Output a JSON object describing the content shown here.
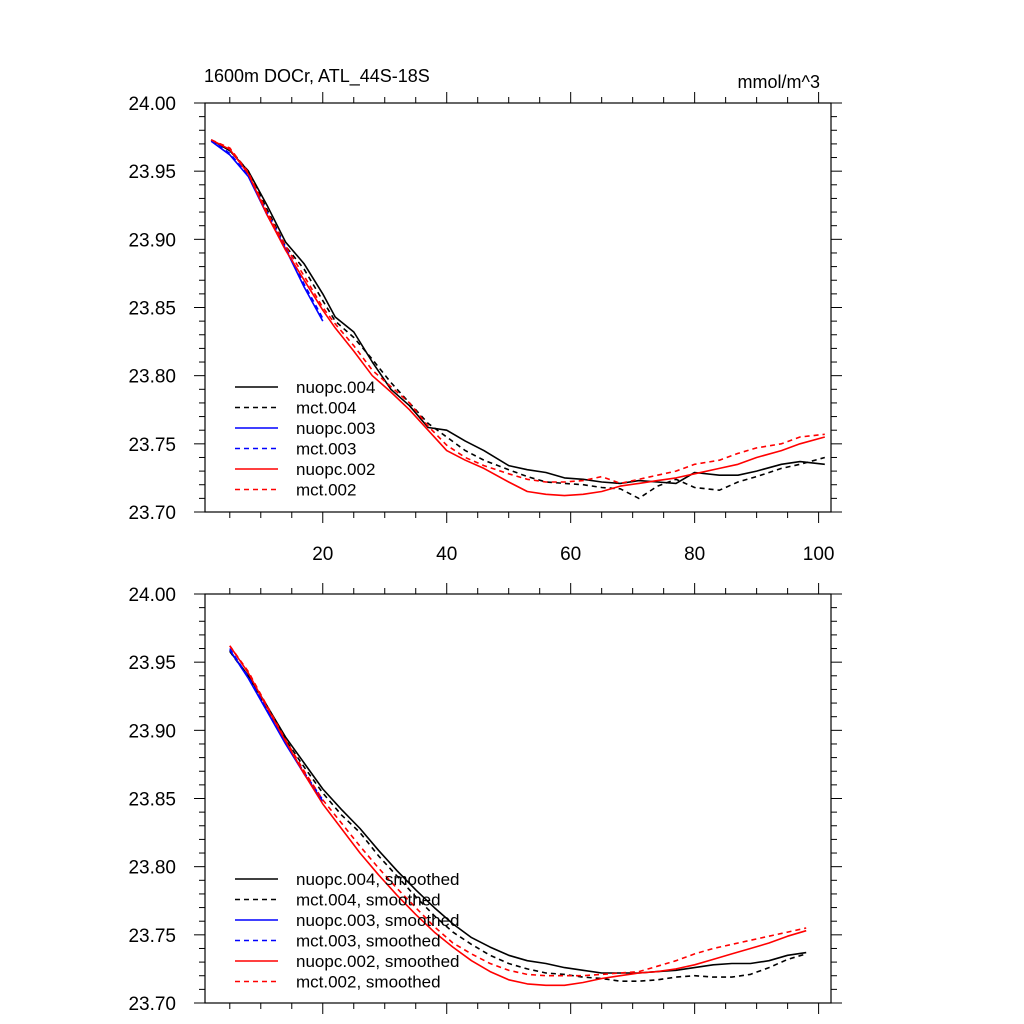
{
  "page": {
    "title_left": "1600m DOCr, ATL_44S-18S",
    "title_right": "mmol/m^3"
  },
  "colors": {
    "004": "#000000",
    "003": "#0000ff",
    "002": "#ff0000"
  },
  "chart_data": [
    {
      "type": "line",
      "title": "1600m DOCr, ATL_44S-18S",
      "units_label": "mmol/m^3",
      "xlabel": "",
      "ylabel": "",
      "xlim": [
        1,
        102
      ],
      "ylim": [
        23.7,
        24.0
      ],
      "x_ticks": [
        20,
        40,
        60,
        80,
        100
      ],
      "x_tick_labels": [
        "20",
        "40",
        "60",
        "80",
        "100"
      ],
      "y_ticks": [
        23.7,
        23.75,
        23.8,
        23.85,
        23.9,
        23.95,
        24.0
      ],
      "y_tick_labels": [
        "23.70",
        "23.75",
        "23.80",
        "23.85",
        "23.90",
        "23.95",
        "24.00"
      ],
      "legend": {
        "position": "lower-left"
      },
      "series": [
        {
          "name": "nuopc.004",
          "color": "#000000",
          "dash": "solid",
          "x": [
            2,
            5,
            8,
            11,
            14,
            17,
            20,
            22,
            25,
            28,
            31,
            34,
            37,
            40,
            43,
            46,
            50,
            53,
            56,
            59,
            62,
            65,
            68,
            71,
            74,
            77,
            80,
            84,
            87,
            90,
            94,
            97,
            101
          ],
          "y": [
            23.973,
            23.965,
            23.95,
            23.925,
            23.898,
            23.882,
            23.86,
            23.843,
            23.832,
            23.81,
            23.79,
            23.778,
            23.762,
            23.76,
            23.752,
            23.745,
            23.734,
            23.731,
            23.729,
            23.725,
            23.724,
            23.722,
            23.721,
            23.723,
            23.722,
            23.721,
            23.729,
            23.727,
            23.727,
            23.73,
            23.735,
            23.737,
            23.735
          ]
        },
        {
          "name": "mct.004",
          "color": "#000000",
          "dash": "dashed",
          "x": [
            2,
            5,
            8,
            11,
            14,
            17,
            20,
            22,
            25,
            28,
            31,
            34,
            37,
            40,
            43,
            46,
            50,
            53,
            56,
            59,
            62,
            65,
            68,
            71,
            74,
            77,
            80,
            84,
            87,
            90,
            94,
            97,
            101
          ],
          "y": [
            23.972,
            23.966,
            23.95,
            23.922,
            23.895,
            23.878,
            23.855,
            23.84,
            23.828,
            23.812,
            23.795,
            23.78,
            23.765,
            23.755,
            23.745,
            23.738,
            23.731,
            23.726,
            23.722,
            23.721,
            23.72,
            23.718,
            23.717,
            23.71,
            23.719,
            23.724,
            23.718,
            23.716,
            23.722,
            23.726,
            23.732,
            23.735,
            23.74
          ]
        },
        {
          "name": "nuopc.003",
          "color": "#0000ff",
          "dash": "solid",
          "x": [
            2,
            5,
            8,
            11,
            14,
            17,
            20
          ],
          "y": [
            23.972,
            23.962,
            23.946,
            23.918,
            23.893,
            23.865,
            23.84
          ]
        },
        {
          "name": "mct.003",
          "color": "#0000ff",
          "dash": "dashed",
          "x": [
            2,
            5,
            8,
            11,
            14,
            17,
            20
          ],
          "y": [
            23.973,
            23.963,
            23.947,
            23.92,
            23.894,
            23.867,
            23.842
          ]
        },
        {
          "name": "nuopc.002",
          "color": "#ff0000",
          "dash": "solid",
          "x": [
            2,
            5,
            8,
            11,
            14,
            17,
            20,
            22,
            25,
            28,
            31,
            34,
            37,
            40,
            43,
            46,
            50,
            53,
            56,
            59,
            62,
            65,
            68,
            71,
            74,
            77,
            80,
            84,
            87,
            90,
            94,
            97,
            101
          ],
          "y": [
            23.973,
            23.966,
            23.948,
            23.918,
            23.892,
            23.87,
            23.848,
            23.835,
            23.818,
            23.8,
            23.788,
            23.775,
            23.76,
            23.745,
            23.738,
            23.732,
            23.722,
            23.715,
            23.713,
            23.712,
            23.713,
            23.715,
            23.719,
            23.721,
            23.723,
            23.725,
            23.728,
            23.732,
            23.735,
            23.74,
            23.745,
            23.75,
            23.755
          ]
        },
        {
          "name": "mct.002",
          "color": "#ff0000",
          "dash": "dashed",
          "x": [
            2,
            5,
            8,
            11,
            14,
            17,
            20,
            22,
            25,
            28,
            31,
            34,
            37,
            40,
            43,
            46,
            50,
            53,
            56,
            59,
            62,
            65,
            68,
            71,
            74,
            77,
            80,
            84,
            87,
            90,
            94,
            97,
            101
          ],
          "y": [
            23.973,
            23.967,
            23.949,
            23.92,
            23.895,
            23.873,
            23.85,
            23.838,
            23.822,
            23.804,
            23.792,
            23.78,
            23.763,
            23.749,
            23.74,
            23.734,
            23.728,
            23.724,
            23.722,
            23.722,
            23.723,
            23.726,
            23.721,
            23.724,
            23.727,
            23.73,
            23.735,
            23.738,
            23.743,
            23.747,
            23.75,
            23.755,
            23.757
          ]
        }
      ]
    },
    {
      "type": "line",
      "title": "",
      "xlabel": "",
      "ylabel": "",
      "xlim": [
        1,
        102
      ],
      "ylim": [
        23.7,
        24.0
      ],
      "x_ticks": [
        20,
        40,
        60,
        80,
        100
      ],
      "y_ticks": [
        23.7,
        23.75,
        23.8,
        23.85,
        23.9,
        23.95,
        24.0
      ],
      "y_tick_labels": [
        "23.70",
        "23.75",
        "23.80",
        "23.85",
        "23.90",
        "23.95",
        "24.00"
      ],
      "legend": {
        "position": "lower-left"
      },
      "series": [
        {
          "name": "nuopc.004, smoothed",
          "color": "#000000",
          "dash": "solid",
          "x": [
            5,
            8,
            11,
            14,
            17,
            20,
            23,
            26,
            29,
            32,
            35,
            38,
            41,
            44,
            47,
            50,
            53,
            56,
            59,
            62,
            65,
            68,
            71,
            74,
            77,
            80,
            83,
            86,
            89,
            92,
            95,
            98
          ],
          "y": [
            23.958,
            23.94,
            23.918,
            23.895,
            23.876,
            23.857,
            23.842,
            23.828,
            23.812,
            23.797,
            23.783,
            23.77,
            23.758,
            23.748,
            23.741,
            23.735,
            23.731,
            23.729,
            23.726,
            23.724,
            23.722,
            23.722,
            23.722,
            23.723,
            23.724,
            23.726,
            23.728,
            23.729,
            23.729,
            23.731,
            23.735,
            23.737
          ]
        },
        {
          "name": "mct.004, smoothed",
          "color": "#000000",
          "dash": "dashed",
          "x": [
            5,
            8,
            11,
            14,
            17,
            20,
            23,
            26,
            29,
            32,
            35,
            38,
            41,
            44,
            47,
            50,
            53,
            56,
            59,
            62,
            65,
            68,
            71,
            74,
            77,
            80,
            83,
            86,
            89,
            92,
            95,
            98
          ],
          "y": [
            23.958,
            23.939,
            23.916,
            23.893,
            23.873,
            23.854,
            23.838,
            23.825,
            23.808,
            23.793,
            23.778,
            23.764,
            23.752,
            23.743,
            23.735,
            23.729,
            23.725,
            23.722,
            23.721,
            23.719,
            23.718,
            23.716,
            23.716,
            23.717,
            23.719,
            23.72,
            23.719,
            23.719,
            23.721,
            23.726,
            23.732,
            23.736
          ]
        },
        {
          "name": "nuopc.003, smoothed",
          "color": "#0000ff",
          "dash": "solid",
          "x": [
            5,
            8,
            11,
            14,
            17,
            20
          ],
          "y": [
            23.959,
            23.938,
            23.914,
            23.89,
            23.868,
            23.848
          ]
        },
        {
          "name": "mct.003, smoothed",
          "color": "#0000ff",
          "dash": "dashed",
          "x": [
            5,
            8,
            11,
            14,
            17,
            20
          ],
          "y": [
            23.96,
            23.939,
            23.915,
            23.891,
            23.869,
            23.849
          ]
        },
        {
          "name": "nuopc.002, smoothed",
          "color": "#ff0000",
          "dash": "solid",
          "x": [
            5,
            8,
            11,
            14,
            17,
            20,
            23,
            26,
            29,
            32,
            35,
            38,
            41,
            44,
            47,
            50,
            53,
            56,
            59,
            62,
            65,
            68,
            71,
            74,
            77,
            80,
            83,
            86,
            89,
            92,
            95,
            98
          ],
          "y": [
            23.962,
            23.942,
            23.917,
            23.892,
            23.868,
            23.846,
            23.828,
            23.81,
            23.794,
            23.779,
            23.765,
            23.752,
            23.741,
            23.731,
            23.723,
            23.717,
            23.714,
            23.713,
            23.713,
            23.715,
            23.718,
            23.72,
            23.722,
            23.723,
            23.725,
            23.728,
            23.732,
            23.736,
            23.74,
            23.744,
            23.749,
            23.753
          ]
        },
        {
          "name": "mct.002, smoothed",
          "color": "#ff0000",
          "dash": "dashed",
          "x": [
            5,
            8,
            11,
            14,
            17,
            20,
            23,
            26,
            29,
            32,
            35,
            38,
            41,
            44,
            47,
            50,
            53,
            56,
            59,
            62,
            65,
            68,
            71,
            74,
            77,
            80,
            83,
            86,
            89,
            92,
            95,
            98
          ],
          "y": [
            23.962,
            23.943,
            23.918,
            23.893,
            23.87,
            23.849,
            23.832,
            23.815,
            23.799,
            23.784,
            23.77,
            23.756,
            23.744,
            23.736,
            23.729,
            23.724,
            23.721,
            23.72,
            23.72,
            23.72,
            23.721,
            23.722,
            23.723,
            23.727,
            23.731,
            23.736,
            23.74,
            23.743,
            23.746,
            23.749,
            23.752,
            23.755
          ]
        }
      ]
    }
  ]
}
